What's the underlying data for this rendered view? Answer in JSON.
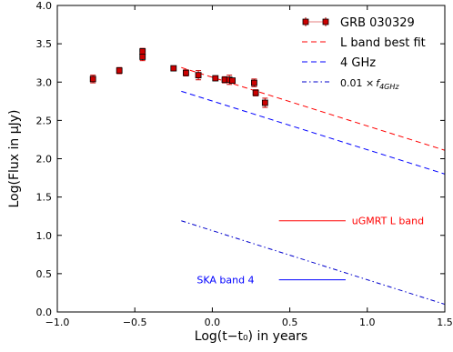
{
  "chart_data": {
    "type": "line",
    "title": "",
    "xlabel": "Log(t−t₀) in years",
    "ylabel": "Log(Flux in μJy)",
    "xlim": [
      -1.0,
      1.5
    ],
    "ylim": [
      0.0,
      4.0
    ],
    "x_ticks": [
      -1.0,
      -0.5,
      0.0,
      0.5,
      1.0,
      1.5
    ],
    "x_tick_labels": [
      "−1.0",
      "−0.5",
      "0.0",
      "0.5",
      "1.0",
      "1.5"
    ],
    "y_ticks": [
      0.0,
      0.5,
      1.0,
      1.5,
      2.0,
      2.5,
      3.0,
      3.5,
      4.0
    ],
    "y_tick_labels": [
      "0.0",
      "0.5",
      "1.0",
      "1.5",
      "2.0",
      "2.5",
      "3.0",
      "3.5",
      "4.0"
    ],
    "grid": false,
    "legend_position": "top-right",
    "series": [
      {
        "name": "GRB 030329",
        "kind": "errorbar",
        "color": "#cc0000",
        "x": [
          -0.77,
          -0.6,
          -0.45,
          -0.45,
          -0.25,
          -0.17,
          -0.09,
          0.02,
          0.08,
          0.11,
          0.13,
          0.27,
          0.28,
          0.34
        ],
        "y": [
          3.04,
          3.15,
          3.4,
          3.33,
          3.18,
          3.12,
          3.09,
          3.05,
          3.03,
          3.03,
          3.02,
          2.99,
          2.86,
          2.73
        ],
        "yerr": [
          0.05,
          0.04,
          0.04,
          0.05,
          0.03,
          0.04,
          0.06,
          0.03,
          0.04,
          0.06,
          0.03,
          0.05,
          0.04,
          0.06
        ]
      },
      {
        "name": "L band best fit",
        "kind": "dashed",
        "color": "#ff0000",
        "x": [
          -0.2,
          1.5
        ],
        "y": [
          3.19,
          2.11
        ]
      },
      {
        "name": "4 GHz",
        "kind": "dashed",
        "color": "#0000ff",
        "x": [
          -0.2,
          1.5
        ],
        "y": [
          2.88,
          1.8
        ]
      },
      {
        "name": "0.01 ×f4GHz",
        "legend_text_main": "0.01 ×",
        "legend_text_f": "f",
        "legend_text_sub": "4GHz",
        "kind": "dashdot",
        "color": "#0000cc",
        "x": [
          -0.2,
          1.5
        ],
        "y": [
          1.19,
          0.1
        ]
      }
    ],
    "sensitivity_lines": [
      {
        "label": "uGMRT L band",
        "color": "#ff0000",
        "x": [
          0.43,
          0.86
        ],
        "y": 1.19,
        "label_x": 0.9
      },
      {
        "label": "SKA band 4",
        "color": "#0000ff",
        "x": [
          0.43,
          0.86
        ],
        "y": 0.42,
        "label_x": -0.1
      }
    ]
  }
}
